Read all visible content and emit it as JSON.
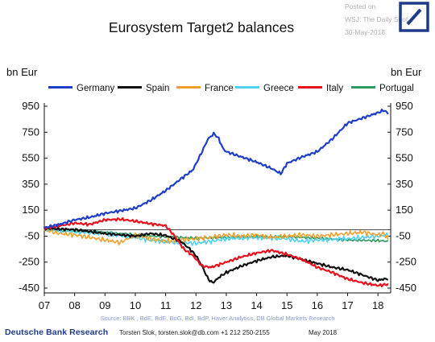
{
  "header": {
    "title": "Eurosystem Target2 balances",
    "watermark_lines": [
      "Posted on",
      "WSJ: The Daily Shot",
      "30-May-2018"
    ],
    "brand_color": "#1f3c8c"
  },
  "units": {
    "left": "bn Eur",
    "right": "bn Eur"
  },
  "footer": {
    "source": "Source: BBK , BdE, BdE, BoG, BdI, BdP, Haver Analytics, DB Global Markets Research",
    "brand": "Deutsche Bank Research",
    "author": "Torsten Slok, torsten.slok@db.com  +1 212 250-2155",
    "date": "May 2018"
  },
  "chart_data": {
    "type": "line",
    "title": "Eurosystem Target2 balances",
    "ylabel": "bn Eur",
    "ylim": [
      -450,
      950
    ],
    "yticks": [
      950,
      750,
      550,
      350,
      150,
      -50,
      -250,
      -450
    ],
    "xlim": [
      2007,
      2018.42
    ],
    "xticks": [
      2007,
      2008,
      2009,
      2010,
      2011,
      2012,
      2013,
      2014,
      2015,
      2016,
      2017,
      2018
    ],
    "xtick_labels": [
      "07",
      "08",
      "09",
      "10",
      "11",
      "12",
      "13",
      "14",
      "15",
      "16",
      "17",
      "18"
    ],
    "grid": false,
    "legend": "top",
    "series": [
      {
        "name": "Germany",
        "color": "#1f3ec8",
        "x": [
          2007,
          2007.5,
          2008,
          2008.5,
          2009,
          2009.5,
          2010,
          2010.5,
          2011,
          2011.5,
          2011.9,
          2012.2,
          2012.4,
          2012.6,
          2012.75,
          2012.9,
          2013,
          2013.5,
          2014,
          2014.5,
          2014.8,
          2015,
          2015.5,
          2016,
          2016.5,
          2017,
          2017.5,
          2018,
          2018.2,
          2018.35
        ],
        "y": [
          15,
          40,
          75,
          95,
          125,
          145,
          165,
          225,
          300,
          390,
          460,
          600,
          700,
          740,
          700,
          620,
          600,
          560,
          520,
          470,
          430,
          510,
          560,
          600,
          700,
          820,
          860,
          900,
          920,
          890
        ]
      },
      {
        "name": "Spain",
        "color": "#111111",
        "x": [
          2007,
          2008,
          2009,
          2010,
          2010.5,
          2011,
          2011.5,
          2011.8,
          2012,
          2012.2,
          2012.4,
          2012.55,
          2012.8,
          2013,
          2013.5,
          2014,
          2014.5,
          2015,
          2015.5,
          2016,
          2016.5,
          2017,
          2017.5,
          2018,
          2018.2,
          2018.35
        ],
        "y": [
          10,
          0,
          -30,
          -50,
          -30,
          -45,
          -90,
          -150,
          -200,
          -280,
          -380,
          -410,
          -360,
          -330,
          -280,
          -240,
          -210,
          -200,
          -230,
          -260,
          -290,
          -310,
          -350,
          -390,
          -380,
          -380
        ]
      },
      {
        "name": "France",
        "color": "#f0a030",
        "x": [
          2007,
          2007.5,
          2008,
          2008.5,
          2009,
          2009.5,
          2010,
          2010.5,
          2011,
          2011.5,
          2012,
          2012.5,
          2013,
          2013.5,
          2014,
          2014.5,
          2015,
          2015.5,
          2016,
          2016.5,
          2017,
          2017.5,
          2018,
          2018.2,
          2018.35
        ],
        "y": [
          0,
          -30,
          -40,
          -60,
          -80,
          -100,
          -40,
          -70,
          -90,
          -80,
          -70,
          -60,
          -40,
          -50,
          -40,
          -60,
          -50,
          -40,
          -50,
          -40,
          -30,
          -20,
          -40,
          -30,
          -80
        ]
      },
      {
        "name": "Greece",
        "color": "#4fd2ee",
        "x": [
          2007,
          2008,
          2009,
          2010,
          2010.5,
          2011,
          2011.5,
          2012,
          2012.5,
          2013,
          2014,
          2015,
          2015.5,
          2016,
          2017,
          2018,
          2018.35
        ],
        "y": [
          0,
          -15,
          -30,
          -60,
          -80,
          -95,
          -100,
          -105,
          -90,
          -70,
          -60,
          -70,
          -90,
          -80,
          -70,
          -50,
          -40
        ]
      },
      {
        "name": "Italy",
        "color": "#e8101e",
        "x": [
          2007,
          2007.5,
          2008,
          2008.5,
          2009,
          2009.5,
          2010,
          2010.5,
          2011,
          2011.3,
          2011.6,
          2011.9,
          2012.2,
          2012.5,
          2013,
          2013.5,
          2014,
          2014.5,
          2015,
          2015.5,
          2016,
          2016.5,
          2017,
          2017.5,
          2018,
          2018.35
        ],
        "y": [
          10,
          30,
          50,
          40,
          75,
          80,
          65,
          45,
          30,
          -50,
          -150,
          -200,
          -280,
          -290,
          -250,
          -210,
          -180,
          -160,
          -190,
          -230,
          -290,
          -330,
          -380,
          -410,
          -430,
          -420
        ]
      },
      {
        "name": "Portugal",
        "color": "#2f9a60",
        "x": [
          2007,
          2008,
          2009,
          2010,
          2011,
          2012,
          2013,
          2014,
          2015,
          2016,
          2017,
          2018,
          2018.35
        ],
        "y": [
          0,
          -10,
          -20,
          -40,
          -55,
          -65,
          -60,
          -55,
          -55,
          -65,
          -80,
          -85,
          -90
        ]
      }
    ]
  }
}
